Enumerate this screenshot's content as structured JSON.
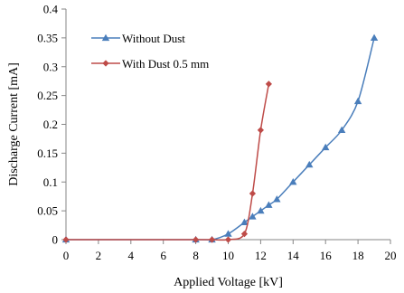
{
  "chart_data": {
    "type": "line",
    "xlabel": "Applied Voltage [kV]",
    "ylabel": "Discharge Current [mA]",
    "xlim": [
      0,
      20
    ],
    "ylim": [
      0,
      0.4
    ],
    "x_ticks": [
      "0",
      "2",
      "4",
      "6",
      "8",
      "10",
      "12",
      "14",
      "16",
      "18",
      "20"
    ],
    "y_ticks": [
      "0",
      "0.05",
      "0.1",
      "0.15",
      "0.2",
      "0.25",
      "0.3",
      "0.35",
      "0.4"
    ],
    "grid": false,
    "legend_position": "top-left",
    "series": [
      {
        "name": "Without Dust",
        "color": "#4a7ebb",
        "marker": "triangle",
        "x": [
          0,
          8,
          9,
          10,
          11,
          11.5,
          12,
          12.5,
          13,
          14,
          15,
          16,
          17,
          18,
          19
        ],
        "y": [
          0,
          0,
          0,
          0.01,
          0.03,
          0.04,
          0.05,
          0.06,
          0.07,
          0.1,
          0.13,
          0.16,
          0.19,
          0.24,
          0.35
        ]
      },
      {
        "name": "With Dust 0.5 mm",
        "color": "#be4b48",
        "marker": "diamond",
        "x": [
          0,
          8,
          9,
          10,
          11,
          11.5,
          12,
          12.5
        ],
        "y": [
          0,
          0,
          0,
          0,
          0.01,
          0.08,
          0.19,
          0.27
        ]
      }
    ]
  }
}
